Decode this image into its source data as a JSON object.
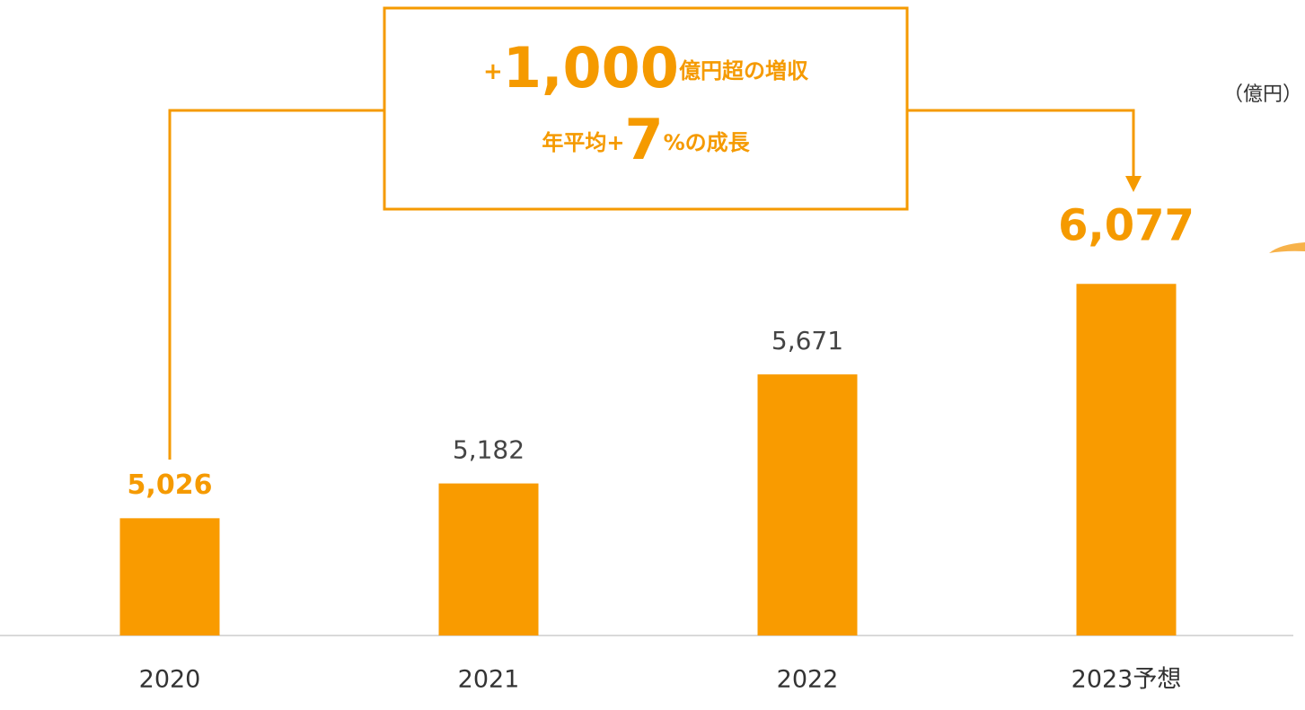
{
  "chart_data": {
    "type": "bar",
    "categories": [
      "2020",
      "2021",
      "2022",
      "2023予想"
    ],
    "values": [
      5026,
      5182,
      5671,
      6077
    ],
    "value_labels": [
      "5,026",
      "5,182",
      "5,671",
      "6,077"
    ],
    "label_colors": [
      "#f59a00",
      "#444444",
      "#444444",
      "#f59a00"
    ],
    "color": "#f99b00",
    "ylim": [
      4500,
      7000
    ],
    "unit_label": "（億円）",
    "annotation": {
      "line1": [
        "+",
        "1,000",
        "億円超の増収"
      ],
      "line2": [
        "年平均+",
        "7",
        "%の成長"
      ]
    }
  }
}
